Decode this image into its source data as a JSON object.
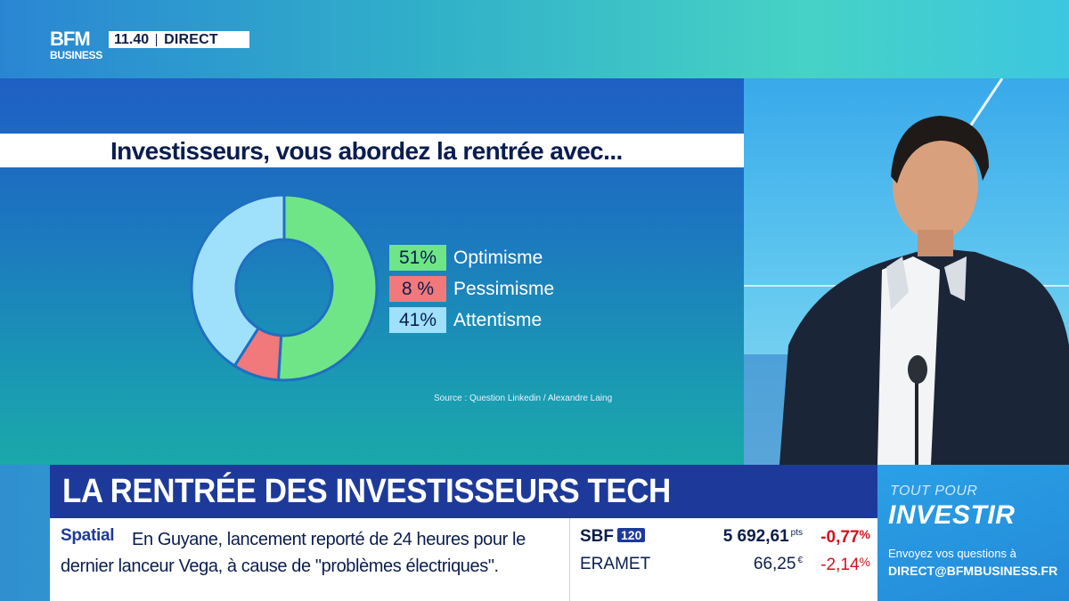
{
  "channel": {
    "logo_top": "BFM",
    "logo_bottom": "BUSINESS",
    "time": "11.40",
    "live": "DIRECT"
  },
  "chart_panel": {
    "title": "Investisseurs, vous abordez la rentrée avec...",
    "source": "Source : Question Linkedin / Alexandre Laing"
  },
  "chart_data": {
    "type": "pie",
    "title": "Investisseurs, vous abordez la rentrée avec...",
    "categories": [
      "Optimisme",
      "Pessimisme",
      "Attentisme"
    ],
    "values": [
      51,
      8,
      41
    ],
    "labels": [
      "51%",
      "8 %",
      "41%"
    ],
    "colors": [
      "#6fe587",
      "#f1787b",
      "#9fe1fa"
    ]
  },
  "headline": "LA RENTRÉE DES INVESTISSEURS TECH",
  "news": {
    "category": "Spatial",
    "text": "En Guyane, lancement reporté de 24 heures pour le dernier lanceur Vega, à cause de \"problèmes électriques\"."
  },
  "market": [
    {
      "name": "SBF",
      "tag": "120",
      "value": "5 692,61",
      "unit": "pts",
      "change": "-0,77",
      "pct": "%"
    },
    {
      "name": "ERAMET",
      "tag": "",
      "value": "66,25",
      "unit": "€",
      "change": "-2,14",
      "pct": "%"
    }
  ],
  "promo": {
    "small": "TOUT POUR",
    "big": "INVESTIR",
    "line1": "Envoyez vos questions à",
    "line2": "DIRECT@BFMBUSINESS.FR"
  },
  "colors": {
    "brand_dark": "#0a1d4e",
    "headline_bg": "#1d3a9a",
    "negative": "#d4121f"
  }
}
